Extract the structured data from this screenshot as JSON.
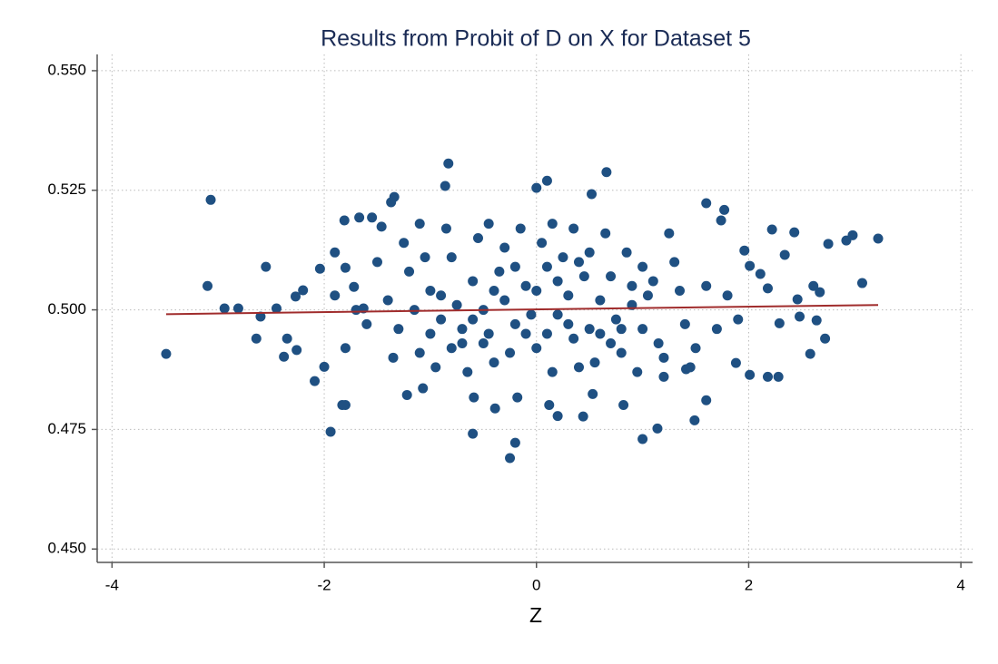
{
  "chart_data": {
    "type": "scatter",
    "title": "Results from Probit of D on X for Dataset 5",
    "x_label": "Z",
    "xlim": [
      -4.14,
      4.11
    ],
    "ylim": [
      0.4472,
      0.5534
    ],
    "xticks": [
      -4,
      -2,
      0,
      2,
      4
    ],
    "yticks": [
      {
        "value": 0.45,
        "label": "0.450"
      },
      {
        "value": 0.475,
        "label": "0.475"
      },
      {
        "value": 0.5,
        "label": "0.500"
      },
      {
        "value": 0.525,
        "label": "0.525"
      },
      {
        "value": 0.55,
        "label": "0.550"
      }
    ],
    "grid": true,
    "series": [
      {
        "kind": "scatter",
        "color": "#1f5082",
        "x": [
          -3.49,
          -3.07,
          -3.1,
          -2.94,
          -2.81,
          -2.6,
          -2.55,
          -2.64,
          -2.45,
          -2.35,
          -2.26,
          -2.38,
          -2.2,
          -2.27,
          -2.09,
          -2.04,
          -2.0,
          -1.94,
          -1.9,
          -1.83,
          -1.8,
          -1.81,
          -1.67,
          -1.55,
          -1.37,
          -1.34,
          -1.46,
          -0.83,
          -0.86,
          -0.6,
          -0.59,
          -0.25,
          -0.2,
          0.1,
          0.0,
          0.66,
          0.52,
          1.0,
          1.14,
          1.49,
          1.6,
          1.6,
          1.77,
          1.74,
          1.96,
          2.01,
          2.11,
          2.18,
          2.18,
          2.28,
          2.22,
          2.34,
          2.43,
          2.48,
          2.46,
          2.58,
          2.61,
          2.67,
          2.64,
          2.72,
          2.75,
          2.92,
          2.98,
          3.07,
          3.22,
          2.01,
          2.29,
          1.88,
          1.41,
          0.82,
          0.53,
          0.2,
          0.44,
          -1.22,
          -1.07,
          -0.39,
          -0.18,
          0.12,
          -1.8,
          -1.72,
          -1.63,
          -1.4,
          -1.3,
          -1.2,
          -1.1,
          -1.0,
          -0.9,
          -0.8,
          -0.7,
          -0.6,
          -0.5,
          -0.4,
          -0.3,
          -0.2,
          -0.1,
          0.0,
          0.1,
          0.2,
          0.3,
          0.4,
          0.5,
          0.6,
          0.7,
          0.8,
          0.9,
          1.0,
          1.1,
          1.2,
          1.3,
          1.4,
          -1.35,
          -1.25,
          -1.15,
          -1.05,
          -0.95,
          -0.85,
          -0.75,
          -0.65,
          -0.55,
          -0.45,
          -0.35,
          -0.25,
          -0.15,
          -0.05,
          0.05,
          0.15,
          0.25,
          0.35,
          0.45,
          0.55,
          0.65,
          0.75,
          0.85,
          0.95,
          1.05,
          1.15,
          1.25,
          1.35,
          1.45,
          -1.6,
          -1.7,
          -1.8,
          1.6,
          1.7,
          1.8,
          1.9,
          -1.9,
          -1.5,
          1.5,
          -0.9,
          -0.6,
          -0.3,
          0.0,
          0.3,
          0.6,
          0.9,
          -0.7,
          -0.4,
          -0.1,
          0.2,
          0.5,
          0.8,
          -0.2,
          0.1,
          0.4,
          0.7,
          -0.8,
          -0.5,
          1.0,
          -1.0,
          0.35,
          -0.45,
          0.15,
          -1.1,
          1.2
        ],
        "y": [
          0.4908,
          0.523,
          0.505,
          0.5003,
          0.5003,
          0.4986,
          0.509,
          0.494,
          0.5003,
          0.494,
          0.4916,
          0.4902,
          0.5041,
          0.5028,
          0.4851,
          0.5086,
          0.4881,
          0.4745,
          0.512,
          0.4801,
          0.4801,
          0.5187,
          0.5193,
          0.5193,
          0.5225,
          0.5236,
          0.5174,
          0.5306,
          0.5259,
          0.4741,
          0.4817,
          0.469,
          0.4722,
          0.527,
          0.5255,
          0.5288,
          0.5242,
          0.473,
          0.4752,
          0.4769,
          0.4811,
          0.5223,
          0.5209,
          0.5187,
          0.5124,
          0.5092,
          0.5075,
          0.5045,
          0.486,
          0.486,
          0.5168,
          0.5115,
          0.5162,
          0.4986,
          0.5022,
          0.4908,
          0.505,
          0.5037,
          0.4978,
          0.494,
          0.5138,
          0.5145,
          0.5156,
          0.5056,
          0.5149,
          0.4864,
          0.4972,
          0.4889,
          0.4876,
          0.4801,
          0.4824,
          0.4778,
          0.4777,
          0.4822,
          0.4836,
          0.4794,
          0.4817,
          0.4801,
          0.5088,
          0.5048,
          0.5003,
          0.502,
          0.496,
          0.508,
          0.491,
          0.504,
          0.498,
          0.511,
          0.493,
          0.506,
          0.5,
          0.489,
          0.513,
          0.497,
          0.505,
          0.492,
          0.509,
          0.499,
          0.503,
          0.488,
          0.512,
          0.495,
          0.507,
          0.491,
          0.501,
          0.496,
          0.506,
          0.49,
          0.51,
          0.497,
          0.49,
          0.514,
          0.5,
          0.511,
          0.488,
          0.517,
          0.501,
          0.487,
          0.515,
          0.495,
          0.508,
          0.491,
          0.517,
          0.499,
          0.514,
          0.487,
          0.511,
          0.494,
          0.507,
          0.489,
          0.516,
          0.498,
          0.512,
          0.487,
          0.503,
          0.493,
          0.516,
          0.504,
          0.488,
          0.497,
          0.5,
          0.492,
          0.505,
          0.496,
          0.503,
          0.498,
          0.503,
          0.51,
          0.492,
          0.503,
          0.498,
          0.502,
          0.504,
          0.497,
          0.502,
          0.505,
          0.496,
          0.504,
          0.495,
          0.506,
          0.496,
          0.496,
          0.509,
          0.495,
          0.51,
          0.493,
          0.492,
          0.493,
          0.509,
          0.495,
          0.517,
          0.518,
          0.518,
          0.518,
          0.486
        ]
      },
      {
        "kind": "line",
        "color": "#a02c2c",
        "x": [
          -3.49,
          3.22
        ],
        "y": [
          0.4991,
          0.501
        ]
      }
    ]
  }
}
